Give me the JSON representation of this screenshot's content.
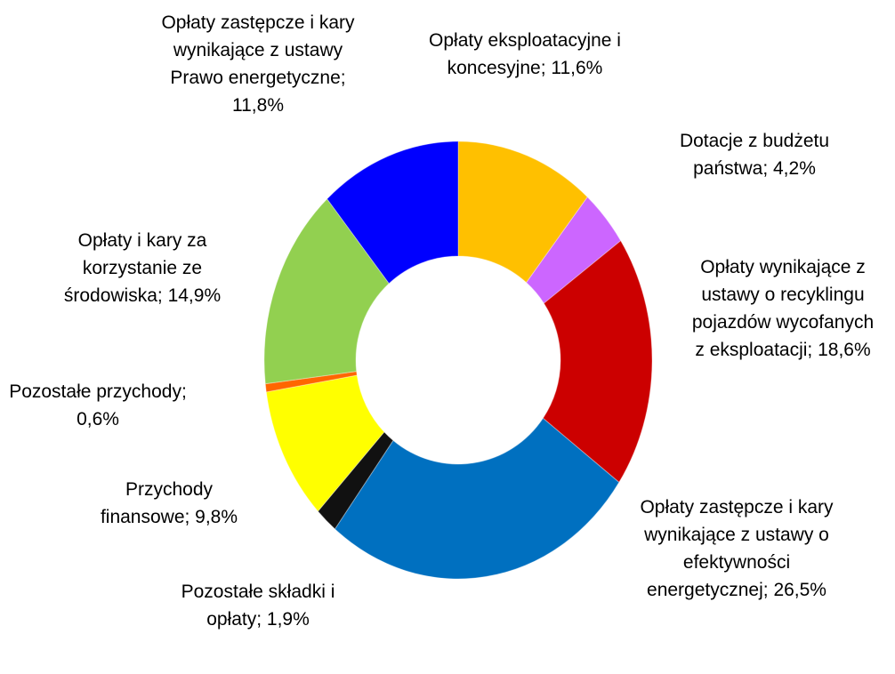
{
  "chart_data": {
    "type": "donut",
    "categories": [
      "Opłaty eksploatacyjne i koncesyjne",
      "Dotacje z budżetu państwa",
      "Opłaty wynikające z ustawy o recyklingu pojazdów wycofanych z eksploatacji",
      "Opłaty zastępcze i kary wynikające z ustawy o efektywności energetycznej",
      "Pozostałe składki i opłaty",
      "Przychody finansowe",
      "Pozostałe przychody",
      "Opłaty i kary za korzystanie ze środowiska",
      "Opłaty zastępcze i kary wynikające z ustawy Prawo energetyczne"
    ],
    "values": [
      11.6,
      4.2,
      18.6,
      26.5,
      1.9,
      9.8,
      0.6,
      14.9,
      11.8
    ],
    "value_labels": [
      "11,6%",
      "4,2%",
      "18,6%",
      "26,5%",
      "1,9%",
      "9,8%",
      "0,6%",
      "14,9%",
      "11,8%"
    ],
    "label_separator": "; ",
    "colors": [
      "#FFC000",
      "#CC66FF",
      "#CC0000",
      "#0070C0",
      "#111111",
      "#FFFF00",
      "#FF6600",
      "#92D050",
      "#0000FF"
    ]
  }
}
